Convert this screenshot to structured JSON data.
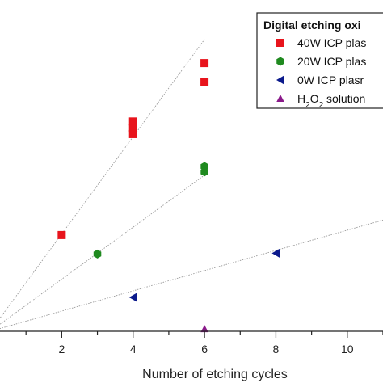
{
  "chart_data": {
    "type": "scatter",
    "xlabel": "Number of etching cycles",
    "ylabel": "",
    "xlim": [
      0.0,
      11.0
    ],
    "ylim": [
      0,
      42
    ],
    "x_ticks": [
      2,
      4,
      6,
      8,
      10
    ],
    "grid": false,
    "legend": {
      "title": "Digital etching oxi",
      "placement": "top-right",
      "entries": [
        {
          "label": "40W ICP plas",
          "marker": "square",
          "color": "#e8141c"
        },
        {
          "label": "20W ICP plas",
          "marker": "hexagon",
          "color": "#1f8a1f"
        },
        {
          "label": "0W ICP plasr",
          "marker": "triangle-left",
          "color": "#0b1a8c"
        },
        {
          "label_main": "H",
          "label_sub1": "2",
          "label_mid": "O",
          "label_sub2": "2",
          "label_tail": " solution",
          "marker": "triangle-up",
          "color": "#8a1a8a"
        }
      ]
    },
    "series": [
      {
        "color": "#e8141c",
        "marker": "square",
        "points": [
          [
            2,
            12.2
          ],
          [
            4,
            25.0
          ],
          [
            4,
            25.8
          ],
          [
            4,
            26.6
          ],
          [
            6,
            31.6
          ],
          [
            6,
            34.0
          ]
        ],
        "trend": [
          [
            0,
            0
          ],
          [
            6.0,
            37.0
          ]
        ]
      },
      {
        "color": "#1f8a1f",
        "marker": "hexagon",
        "points": [
          [
            3,
            9.8
          ],
          [
            6,
            20.2
          ],
          [
            6,
            20.9
          ]
        ],
        "trend": [
          [
            0,
            0
          ],
          [
            6.0,
            19.8
          ]
        ]
      },
      {
        "color": "#0b1a8c",
        "marker": "triangle-left",
        "points": [
          [
            4,
            4.3
          ],
          [
            8,
            9.9
          ]
        ],
        "trend": [
          [
            0,
            0
          ],
          [
            11.0,
            14.1
          ]
        ]
      },
      {
        "color": "#8a1a8a",
        "marker": "triangle-up",
        "points": [
          [
            6,
            0.3
          ]
        ],
        "trend": []
      }
    ]
  }
}
